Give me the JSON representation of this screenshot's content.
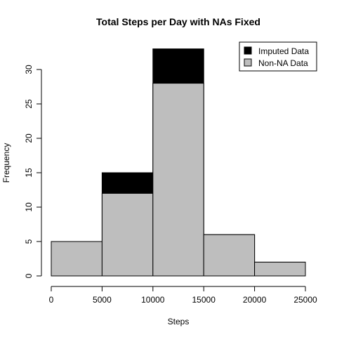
{
  "chart_data": {
    "type": "bar",
    "title": "Total Steps per Day with NAs Fixed",
    "xlabel": "Steps",
    "ylabel": "Frequency",
    "bins": [
      {
        "from": 0,
        "to": 5000
      },
      {
        "from": 5000,
        "to": 10000
      },
      {
        "from": 10000,
        "to": 15000
      },
      {
        "from": 15000,
        "to": 20000
      },
      {
        "from": 20000,
        "to": 25000
      }
    ],
    "series": [
      {
        "name": "Imputed Data",
        "values": [
          5,
          15,
          33,
          6,
          2
        ],
        "color": "#000000"
      },
      {
        "name": "Non-NA Data",
        "values": [
          5,
          12,
          28,
          6,
          2
        ],
        "color": "#bebebe"
      }
    ],
    "xlim": [
      0,
      25000
    ],
    "ylim": [
      0,
      33
    ],
    "x_ticks": [
      "0",
      "5000",
      "10000",
      "15000",
      "20000",
      "25000"
    ],
    "y_ticks": [
      "0",
      "5",
      "10",
      "15",
      "20",
      "25",
      "30"
    ],
    "grid": false,
    "legend_position": "top-right"
  }
}
